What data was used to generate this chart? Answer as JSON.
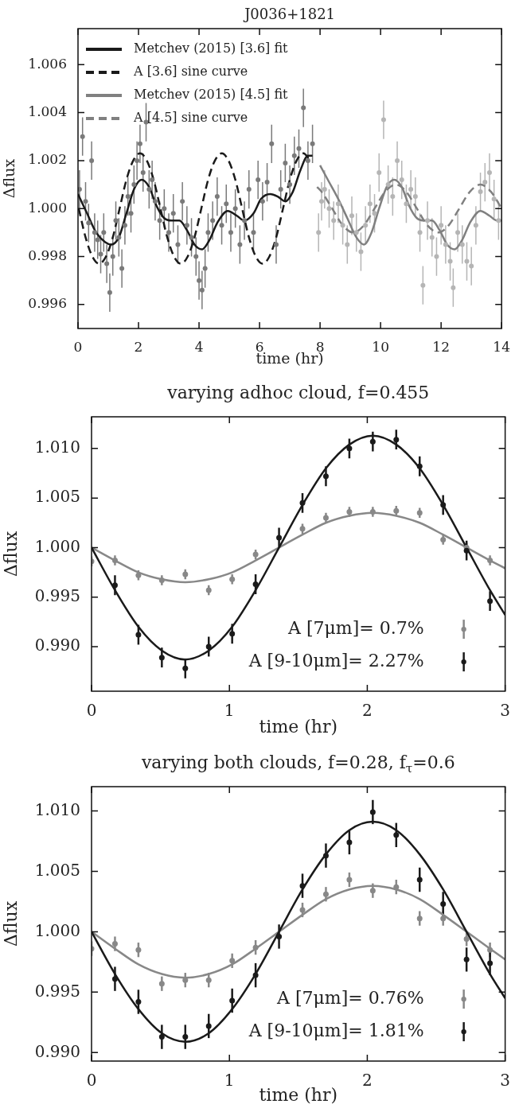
{
  "chart_data": [
    {
      "type": "scatter",
      "title": "J0036+1821",
      "xlabel": "time (hr)",
      "ylabel": "Δflux",
      "xlim": [
        0,
        14
      ],
      "xticks": [
        0,
        2,
        4,
        6,
        8,
        10,
        12,
        14
      ],
      "ylim": [
        0.995,
        1.0075
      ],
      "yticks": [
        0.996,
        0.998,
        {
          "value": 1.0,
          "label": "1.000"
        },
        1.002,
        1.004,
        1.006
      ],
      "legend": "top left",
      "marker": "circle",
      "series": [
        {
          "type": "scatter",
          "color": "#7a7a7a",
          "x": [
            0.05,
            0.15,
            0.25,
            0.35,
            0.45,
            0.55,
            0.65,
            0.75,
            0.85,
            0.95,
            1.05,
            1.15,
            1.25,
            1.35,
            1.45,
            1.55,
            1.65,
            1.75,
            1.85,
            1.95,
            2.05,
            2.15,
            2.25,
            2.35,
            2.45,
            2.55,
            2.7,
            2.85,
            3.0,
            3.15,
            3.3,
            3.45,
            3.6,
            3.75,
            3.9,
            4.0,
            4.1,
            4.2,
            4.3,
            4.45,
            4.6,
            4.75,
            4.9,
            5.05,
            5.2,
            5.35,
            5.5,
            5.65,
            5.8,
            5.95,
            6.1,
            6.25,
            6.4,
            6.55,
            6.7,
            6.85,
            7.0,
            7.15,
            7.3,
            7.45,
            7.6,
            7.75
          ],
          "values": [
            1.0008,
            1.003,
            1.0003,
            0.9994,
            1.002,
            0.999,
            0.9987,
            0.9981,
            0.999,
            0.9977,
            0.9965,
            0.998,
            0.9995,
            0.9988,
            0.9975,
            0.9993,
            1.0005,
            0.9998,
            1.001,
            1.002,
            1.0027,
            1.0015,
            1.0036,
            1.0008,
            1.0012,
            1.0003,
            0.9995,
            1.0,
            0.999,
            0.9998,
            0.9985,
            1.0003,
            0.9993,
            0.9988,
            0.998,
            0.997,
            0.9966,
            0.9975,
            0.999,
            0.9995,
            1.0005,
            0.9993,
            1.0002,
            0.999,
            1.0,
            0.9985,
            0.9995,
            1.0008,
            0.999,
            1.0012,
            1.0003,
            1.0011,
            1.0027,
            0.9985,
            1.0008,
            1.0019,
            1.001,
            1.0022,
            1.0025,
            1.0042,
            1.002,
            1.0027
          ],
          "errors": [
            0.0008,
            0.0008,
            0.0008,
            0.0008,
            0.0008,
            0.0008,
            0.0008,
            0.0008,
            0.0008,
            0.0008,
            0.0008,
            0.0008,
            0.0008,
            0.0008,
            0.0008,
            0.0008,
            0.0008,
            0.0008,
            0.0008,
            0.0008,
            0.0008,
            0.0008,
            0.0008,
            0.0008,
            0.0008,
            0.0008,
            0.0008,
            0.0008,
            0.0008,
            0.0008,
            0.0008,
            0.0008,
            0.0008,
            0.0008,
            0.0008,
            0.0008,
            0.0008,
            0.0008,
            0.0008,
            0.0008,
            0.0008,
            0.0008,
            0.0008,
            0.0008,
            0.0008,
            0.0008,
            0.0008,
            0.0008,
            0.0008,
            0.0008,
            0.0008,
            0.0008,
            0.0008,
            0.0008,
            0.0008,
            0.0008,
            0.0008,
            0.0008,
            0.0008,
            0.0008,
            0.0008,
            0.0008
          ]
        },
        {
          "type": "scatter",
          "color": "#b5b5b5",
          "x": [
            7.95,
            8.05,
            8.15,
            8.3,
            8.45,
            8.6,
            8.75,
            8.9,
            9.05,
            9.2,
            9.35,
            9.5,
            9.65,
            9.8,
            9.95,
            10.1,
            10.25,
            10.4,
            10.55,
            10.7,
            10.85,
            11.0,
            11.15,
            11.3,
            11.4,
            11.55,
            11.7,
            11.85,
            12.0,
            12.15,
            12.3,
            12.4,
            12.55,
            12.7,
            12.85,
            13.0,
            13.15,
            13.3,
            13.45,
            13.6,
            13.75,
            13.9
          ],
          "values": [
            0.999,
            1.0003,
            1.0008,
            1.0,
            0.9995,
            1.0002,
            0.9993,
            0.9985,
            0.9997,
            0.999,
            0.9982,
            0.9993,
            1.0002,
            0.9998,
            1.0015,
            1.0037,
            1.001,
            1.0005,
            1.002,
            1.0012,
            1.0002,
            1.0008,
            1.0005,
            0.999,
            0.9968,
            0.9995,
            0.9988,
            0.998,
            0.9993,
            0.9985,
            0.9978,
            0.9967,
            0.999,
            0.9985,
            0.9978,
            0.9976,
            0.9993,
            1.0007,
            1.0011,
            1.0015,
            1.0004,
            0.9995
          ],
          "errors": [
            0.0008,
            0.0008,
            0.0008,
            0.0008,
            0.0008,
            0.0008,
            0.0008,
            0.0008,
            0.0008,
            0.0008,
            0.0008,
            0.0008,
            0.0008,
            0.0008,
            0.0008,
            0.0008,
            0.0008,
            0.0008,
            0.0008,
            0.0008,
            0.0008,
            0.0008,
            0.0008,
            0.0008,
            0.0008,
            0.0008,
            0.0008,
            0.0008,
            0.0008,
            0.0008,
            0.0008,
            0.0008,
            0.0008,
            0.0008,
            0.0008,
            0.0008,
            0.0008,
            0.0008,
            0.0008,
            0.0008,
            0.0008,
            0.0008
          ]
        },
        {
          "type": "line",
          "name": "Metchev (2015) [3.6] fit",
          "marker": "none",
          "color": "#1a1a1a",
          "line_style": "solid",
          "x": [
            0,
            0.3,
            0.6,
            0.9,
            1.1,
            1.35,
            1.6,
            1.85,
            2.1,
            2.35,
            2.6,
            2.85,
            3.1,
            3.35,
            3.6,
            3.85,
            4.1,
            4.35,
            4.6,
            4.95,
            5.25,
            5.5,
            5.8,
            6.05,
            6.35,
            6.6,
            6.85,
            7.1,
            7.35,
            7.6,
            7.75
          ],
          "values": [
            1.0006,
            0.9998,
            0.999,
            0.9986,
            0.9985,
            0.9988,
            0.9998,
            1.0008,
            1.0012,
            1.0009,
            1.0001,
            0.9996,
            0.9995,
            0.9995,
            0.9991,
            0.9985,
            0.9983,
            0.9987,
            0.9994,
            0.9999,
            0.9997,
            0.9995,
            0.9998,
            1.0004,
            1.0006,
            1.0005,
            1.0003,
            1.0007,
            1.0016,
            1.0022,
            1.0022
          ]
        },
        {
          "type": "line",
          "name": "A [3.6] sine curve",
          "marker": "none",
          "color": "#1a1a1a",
          "line_style": "dashed",
          "x": [
            0.025,
            0.25,
            0.475,
            0.7,
            0.925,
            1.15,
            1.375,
            1.6,
            1.825,
            2.05,
            2.275,
            2.5,
            2.725,
            2.95,
            3.175,
            3.4,
            3.625,
            3.85,
            4.075,
            4.3,
            4.525,
            4.75,
            4.975,
            5.2,
            5.425,
            5.65,
            5.875,
            6.1,
            6.325,
            6.55,
            6.775,
            7.0,
            7.225,
            7.45,
            7.675
          ],
          "values": [
            1.0,
            0.9988,
            0.998,
            0.9977,
            0.998,
            0.9988,
            1.0,
            1.0012,
            1.002,
            1.0023,
            1.002,
            1.0012,
            1.0,
            0.9988,
            0.998,
            0.9977,
            0.998,
            0.9988,
            1.0,
            1.0012,
            1.002,
            1.0023,
            1.002,
            1.0012,
            1.0,
            0.9988,
            0.998,
            0.9977,
            0.998,
            0.9988,
            1.0,
            1.0012,
            1.002,
            1.0023,
            1.002
          ]
        },
        {
          "type": "line",
          "name": "Metchev (2015) [4.5] fit",
          "marker": "none",
          "color": "#808080",
          "line_style": "solid",
          "x": [
            8.0,
            8.3,
            8.6,
            8.9,
            9.2,
            9.45,
            9.7,
            9.95,
            10.2,
            10.45,
            10.7,
            10.95,
            11.2,
            11.45,
            11.7,
            11.95,
            12.2,
            12.45,
            12.7,
            12.95,
            13.3,
            13.6,
            13.85,
            14.0
          ],
          "values": [
            1.0018,
            1.0011,
            1.0004,
            0.9996,
            0.9988,
            0.9985,
            0.999,
            1.0,
            1.0009,
            1.0012,
            1.0009,
            1.0001,
            0.9996,
            0.9995,
            0.9995,
            0.9991,
            0.9985,
            0.9983,
            0.9987,
            0.9994,
            0.9999,
            0.9997,
            0.9995,
            0.9995
          ]
        },
        {
          "type": "line",
          "name": "A [4.5] sine curve",
          "marker": "none",
          "color": "#808080",
          "line_style": "dashed",
          "x": [
            7.9,
            8.05,
            8.4,
            8.75,
            9.1,
            9.45,
            9.8,
            10.15,
            10.5,
            10.85,
            11.2,
            11.55,
            11.9,
            12.25,
            12.6,
            12.95,
            13.3,
            13.65,
            14.0
          ],
          "values": [
            1.0009,
            1.0007,
            1.0,
            0.9993,
            0.999,
            0.9993,
            1.0,
            1.0007,
            1.001,
            1.0007,
            1.0,
            0.9993,
            0.999,
            0.9993,
            1.0,
            1.0007,
            1.001,
            1.0007,
            1.0
          ]
        }
      ]
    },
    {
      "type": "scatter",
      "title": "varying adhoc cloud, f=0.455",
      "xlabel": "time (hr)",
      "ylabel": "Δflux",
      "xlim": [
        0,
        3
      ],
      "xticks": [
        0,
        1,
        2,
        3
      ],
      "ylim": [
        0.9855,
        1.0132
      ],
      "yticks": [
        {
          "value": 0.99,
          "label": "0.990"
        },
        0.995,
        {
          "value": 1.0,
          "label": "1.000"
        },
        1.005,
        {
          "value": 1.01,
          "label": "1.010"
        }
      ],
      "legend": "bottom right",
      "marker": "circle",
      "series": [
        {
          "type": "line",
          "color": "#888888",
          "line_style": "solid",
          "x": [
            0,
            0.17,
            0.34,
            0.51,
            0.68,
            0.85,
            1.02,
            1.19,
            1.36,
            1.53,
            1.7,
            1.87,
            2.04,
            2.21,
            2.38,
            2.55,
            2.72,
            2.89,
            3.0
          ],
          "marker": "none",
          "values": [
            1.0,
            0.9987,
            0.9975,
            0.9968,
            0.9965,
            0.9968,
            0.9975,
            0.9987,
            1.0,
            1.0013,
            1.0025,
            1.0032,
            1.0035,
            1.0032,
            1.0025,
            1.0013,
            1.0,
            0.9987,
            0.9979
          ]
        },
        {
          "type": "line",
          "color": "#1a1a1a",
          "line_style": "solid",
          "x": [
            0,
            0.17,
            0.34,
            0.51,
            0.68,
            0.85,
            1.02,
            1.19,
            1.36,
            1.53,
            1.7,
            1.87,
            2.04,
            2.21,
            2.38,
            2.55,
            2.72,
            2.89,
            3.0
          ],
          "marker": "none",
          "values": [
            1.0,
            0.9957,
            0.992,
            0.9896,
            0.9887,
            0.9896,
            0.992,
            0.9957,
            1.0,
            1.0043,
            1.008,
            1.0104,
            1.0113,
            1.0104,
            1.008,
            1.0043,
            1.0,
            0.9957,
            0.9932
          ]
        },
        {
          "type": "scatter",
          "name": "A [7μm]= 0.7%",
          "color": "#888888",
          "x": [
            0,
            0.17,
            0.34,
            0.51,
            0.68,
            0.85,
            1.02,
            1.19,
            1.36,
            1.53,
            1.7,
            1.87,
            2.04,
            2.21,
            2.38,
            2.55,
            2.72,
            2.89
          ],
          "values": [
            0.9986,
            0.9987,
            0.9972,
            0.9967,
            0.9973,
            0.9957,
            0.9968,
            0.9993,
            null,
            1.0019,
            1.003,
            1.0036,
            1.0036,
            1.0037,
            1.0035,
            1.0008,
            1.0,
            0.9987
          ],
          "errors": [
            0.0005,
            0.0005,
            0.0005,
            0.0005,
            0.0005,
            0.0005,
            0.0005,
            0.0005,
            null,
            0.0005,
            0.0005,
            0.0005,
            0.0005,
            0.0005,
            0.0005,
            0.0005,
            0.0005,
            0.0005
          ]
        },
        {
          "type": "scatter",
          "name": "A [9-10μm]= 2.27%",
          "color": "#1a1a1a",
          "x": [
            0.17,
            0.34,
            0.51,
            0.68,
            0.85,
            1.02,
            1.19,
            1.36,
            1.53,
            1.7,
            1.87,
            2.04,
            2.21,
            2.38,
            2.55,
            2.72,
            2.89
          ],
          "values": [
            0.9962,
            0.9912,
            0.9889,
            0.9878,
            0.99,
            0.9913,
            0.9963,
            1.001,
            1.0045,
            1.0072,
            1.01,
            1.0107,
            1.0109,
            1.0082,
            1.0043,
            0.9997,
            0.9946
          ],
          "errors": [
            0.001,
            0.001,
            0.001,
            0.001,
            0.001,
            0.001,
            0.001,
            0.001,
            0.001,
            0.001,
            0.001,
            0.001,
            0.001,
            0.001,
            0.001,
            0.001,
            0.001
          ]
        }
      ]
    },
    {
      "type": "scatter",
      "title": "varying both clouds, f=0.28, f$_{τ}$=0.6",
      "xlabel": "time (hr)",
      "ylabel": "Δflux",
      "xlim": [
        0,
        3
      ],
      "xticks": [
        0,
        1,
        2,
        3
      ],
      "ylim": [
        0.9893,
        1.012
      ],
      "yticks": [
        {
          "value": 0.99,
          "label": "0.990"
        },
        0.995,
        {
          "value": 1.0,
          "label": "1.000"
        },
        1.005,
        {
          "value": 1.01,
          "label": "1.010"
        }
      ],
      "legend": "bottom right",
      "marker": "circle",
      "series": [
        {
          "type": "line",
          "color": "#888888",
          "line_style": "solid",
          "x": [
            0,
            0.17,
            0.34,
            0.51,
            0.68,
            0.85,
            1.02,
            1.19,
            1.36,
            1.53,
            1.7,
            1.87,
            2.04,
            2.21,
            2.38,
            2.55,
            2.72,
            2.89,
            3.0
          ],
          "marker": "none",
          "values": [
            1.0,
            0.9986,
            0.9973,
            0.9965,
            0.9962,
            0.9965,
            0.9973,
            0.9986,
            1.0,
            1.0014,
            1.0027,
            1.0035,
            1.0038,
            1.0035,
            1.0027,
            1.0014,
            1.0,
            0.9986,
            0.9977
          ]
        },
        {
          "type": "line",
          "color": "#1a1a1a",
          "line_style": "solid",
          "x": [
            0,
            0.17,
            0.34,
            0.51,
            0.68,
            0.85,
            1.02,
            1.19,
            1.36,
            1.53,
            1.7,
            1.87,
            2.04,
            2.21,
            2.38,
            2.55,
            2.72,
            2.89,
            3.0
          ],
          "marker": "none",
          "values": [
            1.0,
            0.9965,
            0.9936,
            0.9916,
            0.9909,
            0.9916,
            0.9936,
            0.9965,
            1.0,
            1.0035,
            1.0064,
            1.0084,
            1.0091,
            1.0084,
            1.0064,
            1.0035,
            1.0,
            0.9965,
            0.9945
          ]
        },
        {
          "type": "scatter",
          "name": "A [7μm]= 0.76%",
          "color": "#888888",
          "x": [
            0,
            0.17,
            0.34,
            0.51,
            0.68,
            0.85,
            1.02,
            1.19,
            1.36,
            1.53,
            1.7,
            1.87,
            2.04,
            2.21,
            2.38,
            2.55,
            2.72,
            2.89
          ],
          "values": [
            0.9986,
            0.999,
            0.9985,
            0.9957,
            0.996,
            0.996,
            0.9976,
            0.9987,
            null,
            1.0018,
            1.0031,
            1.0043,
            1.0034,
            1.0037,
            1.0011,
            1.0011,
            0.9994,
            0.9985
          ],
          "errors": [
            0.0006,
            0.0006,
            0.0006,
            0.0006,
            0.0006,
            0.0006,
            0.0006,
            0.0006,
            null,
            0.0006,
            0.0006,
            0.0006,
            0.0006,
            0.0006,
            0.0006,
            0.0006,
            0.0006,
            0.0006
          ]
        },
        {
          "type": "scatter",
          "name": "A [9-10μm]= 1.81%",
          "color": "#1a1a1a",
          "x": [
            0.17,
            0.34,
            0.51,
            0.68,
            0.85,
            1.02,
            1.19,
            1.36,
            1.53,
            1.7,
            1.87,
            2.04,
            2.21,
            2.38,
            2.55,
            2.72,
            2.89
          ],
          "values": [
            0.9961,
            0.9942,
            0.9913,
            0.9913,
            0.9922,
            0.9943,
            0.9964,
            0.9996,
            1.0038,
            1.0063,
            1.0074,
            1.0099,
            1.008,
            1.0043,
            1.0023,
            0.9977,
            0.9974
          ],
          "errors": [
            0.001,
            0.001,
            0.001,
            0.001,
            0.001,
            0.001,
            0.001,
            0.001,
            0.001,
            0.001,
            0.001,
            0.001,
            0.001,
            0.001,
            0.001,
            0.001,
            0.001
          ]
        }
      ]
    }
  ]
}
